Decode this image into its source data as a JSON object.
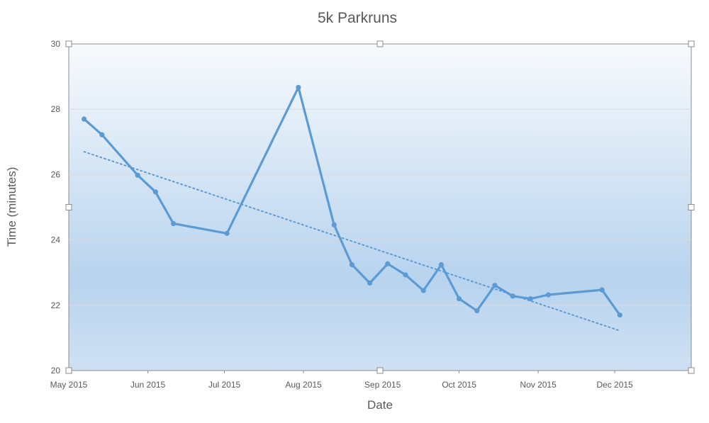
{
  "chart_data": {
    "type": "line",
    "title": "5k Parkruns",
    "xlabel": "Date",
    "ylabel": "Time (minutes)",
    "ylim": [
      20,
      30
    ],
    "yticks": [
      20,
      22,
      24,
      26,
      28,
      30
    ],
    "xlim": [
      "2015-05-01",
      "2015-12-31"
    ],
    "xticks": [
      {
        "date": "2015-05-01",
        "label": "May 2015"
      },
      {
        "date": "2015-06-01",
        "label": "Jun 2015"
      },
      {
        "date": "2015-07-01",
        "label": "Jul 2015"
      },
      {
        "date": "2015-08-01",
        "label": "Aug 2015"
      },
      {
        "date": "2015-09-01",
        "label": "Sep 2015"
      },
      {
        "date": "2015-10-01",
        "label": "Oct 2015"
      },
      {
        "date": "2015-11-01",
        "label": "Nov 2015"
      },
      {
        "date": "2015-12-01",
        "label": "Dec 2015"
      }
    ],
    "grid": true,
    "legend": "none",
    "series": [
      {
        "x": [
          "2015-05-07",
          "2015-05-14",
          "2015-05-28",
          "2015-06-04",
          "2015-06-11",
          "2015-07-02",
          "2015-07-30",
          "2015-08-13",
          "2015-08-20",
          "2015-08-27",
          "2015-09-03",
          "2015-09-10",
          "2015-09-17",
          "2015-09-24",
          "2015-10-01",
          "2015-10-08",
          "2015-10-15",
          "2015-10-22",
          "2015-10-29",
          "2015-11-05",
          "2015-11-26",
          "2015-12-03"
        ],
        "y": [
          27.7,
          27.22,
          25.98,
          25.47,
          24.5,
          24.2,
          28.67,
          24.46,
          23.24,
          22.68,
          23.27,
          22.93,
          22.45,
          23.24,
          22.2,
          21.83,
          22.61,
          22.28,
          22.2,
          22.32,
          22.47,
          21.7
        ]
      }
    ],
    "trendline": {
      "type": "linear",
      "x": [
        "2015-05-07",
        "2015-12-03"
      ],
      "y": [
        26.7,
        21.22
      ]
    },
    "colors": {
      "series": "#5b9bd5",
      "plot_top": "#f7fafd",
      "plot_bottom": "#b8d3ee",
      "text": "#595959"
    }
  }
}
